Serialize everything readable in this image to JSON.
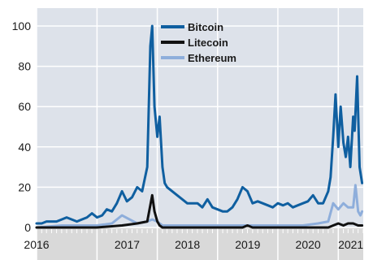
{
  "chart_data": {
    "type": "line",
    "title": "",
    "xlabel": "",
    "ylabel": "",
    "ylim": [
      0,
      100
    ],
    "yticks": [
      0,
      20,
      40,
      60,
      80,
      100
    ],
    "xlim": [
      "2016-01-01",
      "2021-06-01"
    ],
    "xticks": [
      "2016",
      "2017",
      "2018",
      "2019",
      "2020",
      "2021"
    ],
    "grid": true,
    "legend_position": "top-center",
    "colors": {
      "plot_background": "#dde2ea",
      "gridline": "#ffffff",
      "axis_band": "#d9d9d9",
      "bitcoin": "#0f5fa0",
      "litecoin": "#111111",
      "ethereum": "#8eaedb"
    },
    "series": [
      {
        "name": "Bitcoin",
        "x": [
          "2016-01-01",
          "2016-02-01",
          "2016-03-01",
          "2016-04-01",
          "2016-05-01",
          "2016-06-01",
          "2016-07-01",
          "2016-08-01",
          "2016-09-01",
          "2016-10-01",
          "2016-11-01",
          "2016-12-01",
          "2017-01-01",
          "2017-02-01",
          "2017-03-01",
          "2017-04-01",
          "2017-05-01",
          "2017-06-01",
          "2017-07-01",
          "2017-08-01",
          "2017-09-01",
          "2017-10-01",
          "2017-11-01",
          "2017-11-20",
          "2017-12-01",
          "2017-12-15",
          "2018-01-01",
          "2018-01-15",
          "2018-02-01",
          "2018-02-15",
          "2018-03-01",
          "2018-04-01",
          "2018-05-01",
          "2018-06-01",
          "2018-07-01",
          "2018-08-01",
          "2018-09-01",
          "2018-10-01",
          "2018-11-01",
          "2018-12-01",
          "2019-01-01",
          "2019-02-01",
          "2019-03-01",
          "2019-04-01",
          "2019-05-01",
          "2019-06-01",
          "2019-07-01",
          "2019-08-01",
          "2019-09-01",
          "2019-10-01",
          "2019-11-01",
          "2019-12-01",
          "2020-01-01",
          "2020-02-01",
          "2020-03-01",
          "2020-04-01",
          "2020-05-01",
          "2020-06-01",
          "2020-07-01",
          "2020-08-01",
          "2020-09-01",
          "2020-10-01",
          "2020-11-01",
          "2020-11-15",
          "2020-12-01",
          "2020-12-15",
          "2021-01-01",
          "2021-01-15",
          "2021-02-01",
          "2021-02-15",
          "2021-03-01",
          "2021-03-15",
          "2021-04-01",
          "2021-04-10",
          "2021-04-25",
          "2021-05-10",
          "2021-05-25"
        ],
        "values": [
          2,
          2,
          3,
          3,
          3,
          4,
          5,
          4,
          3,
          4,
          5,
          7,
          5,
          6,
          9,
          8,
          12,
          18,
          13,
          15,
          20,
          18,
          30,
          90,
          100,
          60,
          45,
          55,
          30,
          22,
          20,
          18,
          16,
          14,
          12,
          12,
          12,
          10,
          14,
          10,
          9,
          8,
          8,
          10,
          14,
          20,
          18,
          12,
          13,
          12,
          11,
          10,
          12,
          11,
          12,
          10,
          11,
          12,
          13,
          16,
          12,
          12,
          18,
          25,
          45,
          66,
          40,
          60,
          42,
          35,
          45,
          30,
          55,
          48,
          75,
          30,
          22
        ]
      },
      {
        "name": "Litecoin",
        "x": [
          "2016-01-01",
          "2016-06-01",
          "2017-01-01",
          "2017-06-01",
          "2017-09-01",
          "2017-11-01",
          "2017-12-01",
          "2017-12-15",
          "2018-01-01",
          "2018-01-15",
          "2018-02-01",
          "2018-06-01",
          "2019-01-01",
          "2019-06-01",
          "2019-07-01",
          "2019-08-01",
          "2020-01-01",
          "2020-06-01",
          "2020-11-01",
          "2020-12-01",
          "2021-01-01",
          "2021-02-01",
          "2021-03-01",
          "2021-04-01",
          "2021-05-01",
          "2021-05-25"
        ],
        "values": [
          0,
          0,
          0,
          1,
          2,
          3,
          16,
          8,
          3,
          1,
          0,
          0,
          0,
          0,
          1,
          0,
          0,
          0,
          0,
          1,
          2,
          1,
          2,
          2,
          1,
          1
        ]
      },
      {
        "name": "Ethereum",
        "x": [
          "2016-01-01",
          "2016-06-01",
          "2017-01-01",
          "2017-04-01",
          "2017-06-01",
          "2017-09-01",
          "2017-11-01",
          "2017-12-01",
          "2018-01-01",
          "2018-01-15",
          "2018-02-01",
          "2018-06-01",
          "2019-01-01",
          "2019-06-01",
          "2020-01-01",
          "2020-06-01",
          "2020-09-01",
          "2020-11-01",
          "2020-12-01",
          "2021-01-01",
          "2021-02-01",
          "2021-03-01",
          "2021-04-01",
          "2021-04-15",
          "2021-05-01",
          "2021-05-15",
          "2021-05-25"
        ],
        "values": [
          0,
          1,
          1,
          2,
          6,
          2,
          3,
          4,
          3,
          2,
          1,
          1,
          1,
          1,
          1,
          1,
          2,
          3,
          12,
          9,
          12,
          10,
          10,
          21,
          8,
          6,
          8
        ]
      }
    ]
  }
}
